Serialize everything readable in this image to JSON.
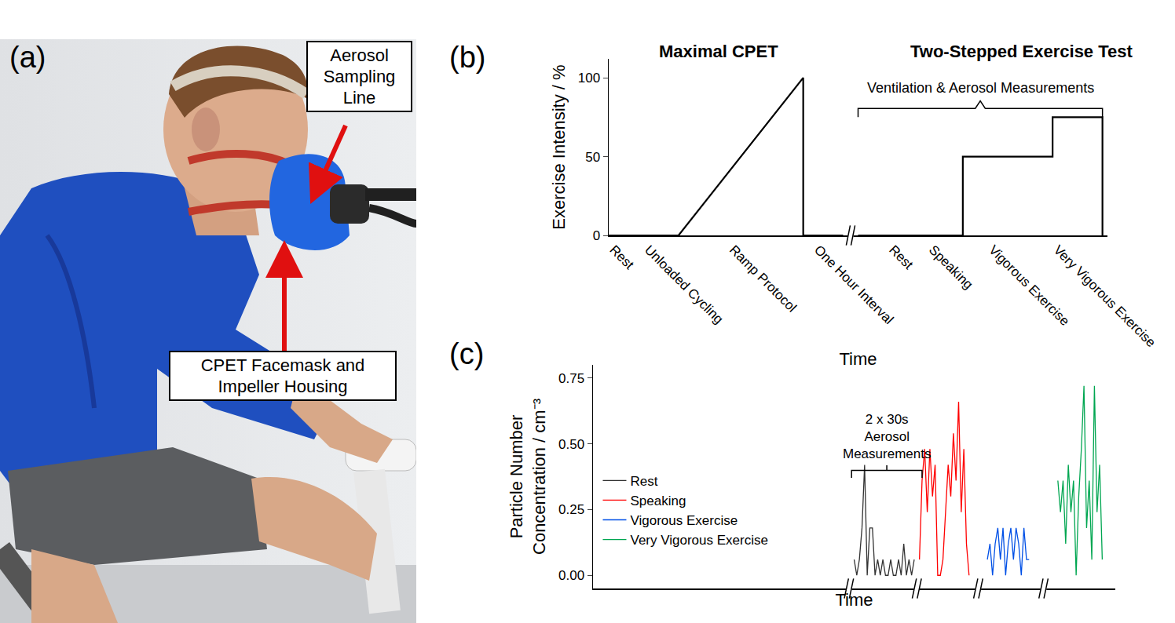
{
  "panel_a": {
    "label": "(a)",
    "callouts": [
      "Aerosol Sampling Line",
      "CPET Facemask and Impeller Housing"
    ]
  },
  "chart_data": [
    {
      "label": "(b)",
      "type": "line",
      "titles": [
        "Maximal CPET",
        "Two-Stepped Exercise Test"
      ],
      "annotations": [
        "Ventilation & Aerosol Measurements"
      ],
      "x_label": "Time",
      "y_label": "Exercise Intensity / %",
      "x": [
        0,
        14,
        39,
        39,
        47,
        null,
        50,
        71,
        71,
        89,
        89,
        99,
        99
      ],
      "values": [
        0,
        0,
        100,
        0,
        0,
        null,
        0,
        0,
        50,
        50,
        75,
        75,
        0
      ],
      "color": "#000000",
      "xlim": [
        0,
        100
      ],
      "xticks": [
        {
          "value": 1,
          "label": "Rest"
        },
        {
          "value": 8,
          "label": "Unloaded Cycling"
        },
        {
          "value": 25,
          "label": "Ramp Protocol"
        },
        {
          "value": 42,
          "label": "One Hour Interval"
        },
        {
          "value": 57,
          "label": "Rest"
        },
        {
          "value": 65,
          "label": "Speaking"
        },
        {
          "value": 77,
          "label": "Vigorous Exercise"
        },
        {
          "value": 90,
          "label": "Very Vigorous Exercise"
        }
      ],
      "ylim": [
        0,
        112
      ],
      "yticks": [
        0,
        50,
        100
      ],
      "grid": false
    },
    {
      "label": "(c)",
      "type": "line",
      "annotations": [
        [
          "2 x 30s",
          "Aerosol",
          "Measurements"
        ]
      ],
      "x_label": "Time",
      "y_label": [
        "Particle Number",
        "Concentration / cm⁻³"
      ],
      "xlim": [
        0,
        100
      ],
      "ylim": [
        -0.05,
        0.8
      ],
      "yticks": [
        {
          "value": 0,
          "label": "0.00"
        },
        {
          "value": 0.25,
          "label": "0.25"
        },
        {
          "value": 0.5,
          "label": "0.50"
        },
        {
          "value": 0.75,
          "label": "0.75"
        }
      ],
      "tick_labels": "y",
      "grid": false,
      "legend": "center left",
      "series": [
        {
          "name": "Rest",
          "color": "#333333",
          "x": [
            50,
            50.5,
            51,
            51.5,
            52,
            52.5,
            53,
            53.5,
            54,
            54.5,
            55,
            55.5,
            56,
            56.5,
            57,
            57.5,
            58,
            58.5,
            59,
            59.5,
            60,
            60.5,
            61,
            61.5
          ],
          "values": [
            0.06,
            0,
            0.06,
            0.18,
            0.42,
            0,
            0.18,
            0.18,
            0,
            0.06,
            0,
            0.06,
            0,
            0,
            0.06,
            0,
            0,
            0.06,
            0,
            0.12,
            0,
            0.06,
            0,
            0.06
          ]
        },
        {
          "name": "Speaking",
          "color": "#ff0000",
          "x": [
            62.5,
            63,
            63.5,
            64,
            64.5,
            65,
            65.5,
            66,
            66.5,
            67,
            67.5,
            68,
            68.5,
            69,
            69.5,
            70,
            70.5,
            71,
            71.5,
            72
          ],
          "values": [
            0.06,
            0.36,
            0.48,
            0.24,
            0.48,
            0.3,
            0.42,
            0,
            0,
            0.06,
            0.24,
            0.42,
            0.3,
            0.54,
            0.36,
            0.66,
            0.24,
            0.48,
            0.12,
            0
          ]
        },
        {
          "name": "Vigorous Exercise",
          "color": "#0050e6",
          "x": [
            75.5,
            76,
            76.5,
            77,
            77.5,
            78,
            78.5,
            79,
            79.5,
            80,
            80.5,
            81,
            81.5,
            82,
            82.5,
            83,
            83.5
          ],
          "values": [
            0.06,
            0.12,
            0,
            0.12,
            0.18,
            0.06,
            0.18,
            0,
            0.12,
            0.18,
            0.06,
            0.18,
            0.12,
            0,
            0.18,
            0.06,
            0.06
          ]
        },
        {
          "name": "Very Vigorous Exercise",
          "color": "#00a651",
          "x": [
            89,
            89.5,
            90,
            90.5,
            91,
            91.5,
            92,
            92.5,
            93,
            93.5,
            94,
            94.5,
            95,
            95.5,
            96,
            96.5,
            97,
            97.5
          ],
          "values": [
            0.36,
            0.24,
            0.36,
            0.12,
            0.42,
            0.24,
            0.36,
            0,
            0.3,
            0.48,
            0.72,
            0.18,
            0.36,
            0.06,
            0.72,
            0.24,
            0.42,
            0.06
          ]
        }
      ]
    }
  ]
}
